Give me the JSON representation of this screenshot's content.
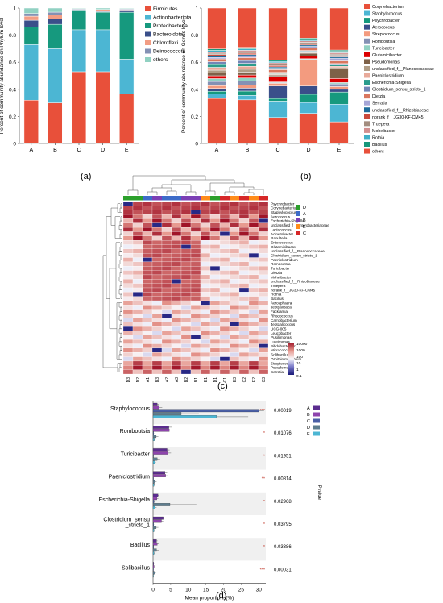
{
  "panel_labels": {
    "a": "(a)",
    "b": "(b)",
    "c": "(c)",
    "d": "(d)"
  },
  "colors": {
    "phylum": [
      "#e8503a",
      "#4cb6d3",
      "#16997e",
      "#3a4f8a",
      "#f29d84",
      "#8491b4",
      "#91d1c2"
    ],
    "genus": [
      "#e8503a",
      "#4cb6d3",
      "#16997e",
      "#3a4f8a",
      "#f39b7f",
      "#8491b4",
      "#91d1c2",
      "#dc0000",
      "#7e6148",
      "#b09c85",
      "#e8aa9a",
      "#2b9c8c",
      "#7385b6",
      "#d9775f",
      "#a6a6d6",
      "#1d6b9a",
      "#c94a3c",
      "#a38d7f",
      "#d18f8f",
      "#3fb0c8",
      "#17977a"
    ],
    "groups": {
      "A": "#3d6cc9",
      "B": "#7b3fb5",
      "C": "#d62728",
      "D": "#2ca02c",
      "E": "#ff8c1a"
    },
    "lefse": [
      "#5b2d8f",
      "#8e44ad",
      "#4a5fa6",
      "#5e7d8f",
      "#4cb6d3"
    ]
  },
  "chart_data": [
    {
      "type": "bar",
      "stacked": true,
      "categories": [
        "A",
        "B",
        "C",
        "D",
        "E"
      ],
      "ylabel": "Percent of community abundance on Phylum level",
      "ylim": [
        0,
        1
      ],
      "yticks": [
        "0",
        "0.2",
        "0.4",
        "0.6",
        "0.8",
        "1"
      ],
      "legend_position": "right",
      "series": [
        {
          "name": "Firmicutes",
          "values": [
            0.32,
            0.3,
            0.53,
            0.53,
            0.36
          ]
        },
        {
          "name": "Actinobacteriota",
          "values": [
            0.41,
            0.4,
            0.31,
            0.31,
            0.25
          ]
        },
        {
          "name": "Proteobacteria",
          "values": [
            0.13,
            0.18,
            0.14,
            0.13,
            0.34
          ]
        },
        {
          "name": "Bacteroidota",
          "values": [
            0.05,
            0.04,
            0.005,
            0.005,
            0.01
          ]
        },
        {
          "name": "Chloroflexi",
          "values": [
            0.03,
            0.03,
            0.005,
            0.01,
            0.01
          ]
        },
        {
          "name": "Deinococcota",
          "values": [
            0.02,
            0.02,
            0.005,
            0.005,
            0.005
          ]
        },
        {
          "name": "others",
          "values": [
            0.04,
            0.03,
            0.005,
            0.01,
            0.005
          ]
        }
      ]
    },
    {
      "type": "bar",
      "stacked": true,
      "categories": [
        "A",
        "B",
        "C",
        "D",
        "E"
      ],
      "ylabel": "Percent of community abundance on Genus level",
      "ylim": [
        0,
        1
      ],
      "yticks": [
        "0",
        "0.2",
        "0.4",
        "0.6",
        "0.8",
        "1"
      ],
      "legend_position": "right",
      "series": [
        {
          "name": "Corynebacterium",
          "values": [
            0.32,
            0.3,
            0.19,
            0.22,
            0.16
          ]
        },
        {
          "name": "Staphylococcus",
          "values": [
            0.03,
            0.03,
            0.12,
            0.08,
            0.13
          ]
        },
        {
          "name": "Psychrobacter",
          "values": [
            0.02,
            0.03,
            0.02,
            0.06,
            0.09
          ]
        },
        {
          "name": "Aerococcus",
          "values": [
            0.02,
            0.02,
            0.09,
            0.06,
            0.02
          ]
        },
        {
          "name": "Streptococcus",
          "values": [
            0.02,
            0.02,
            0.02,
            0.19,
            0.02
          ]
        },
        {
          "name": "Romboutsia",
          "values": [
            0.03,
            0.03,
            0.005,
            0.005,
            0.02
          ]
        },
        {
          "name": "Turicibacter",
          "values": [
            0.02,
            0.02,
            0.005,
            0.005,
            0.01
          ]
        },
        {
          "name": "Glutamicibacter",
          "values": [
            0.02,
            0.02,
            0.04,
            0.02,
            0.03
          ]
        },
        {
          "name": "Pseudomonas",
          "values": [
            0.02,
            0.02,
            0.01,
            0.02,
            0.07
          ]
        },
        {
          "name": "unclassified_f__Planococcaceae",
          "values": [
            0.02,
            0.02,
            0.005,
            0.005,
            0.01
          ]
        },
        {
          "name": "Paeniclostridium",
          "values": [
            0.02,
            0.02,
            0.005,
            0.005,
            0.01
          ]
        },
        {
          "name": "Escherichia-Shigella",
          "values": [
            0.02,
            0.02,
            0.005,
            0.005,
            0.01
          ]
        },
        {
          "name": "Clostridium_sensu_stricto_1",
          "values": [
            0.02,
            0.02,
            0.005,
            0.005,
            0.01
          ]
        },
        {
          "name": "Dietzia",
          "values": [
            0.02,
            0.02,
            0.02,
            0.02,
            0.02
          ]
        },
        {
          "name": "Serratia",
          "values": [
            0.01,
            0.01,
            0.01,
            0.01,
            0.02
          ]
        },
        {
          "name": "unclassified_f__Rhizobiaceae",
          "values": [
            0.01,
            0.01,
            0.01,
            0.01,
            0.01
          ]
        },
        {
          "name": "norank_f__JG30-KF-CM45",
          "values": [
            0.01,
            0.01,
            0.01,
            0.01,
            0.01
          ]
        },
        {
          "name": "Truepera",
          "values": [
            0.01,
            0.01,
            0.01,
            0.01,
            0.01
          ]
        },
        {
          "name": "Moheibacter",
          "values": [
            0.01,
            0.01,
            0.01,
            0.01,
            0.01
          ]
        },
        {
          "name": "Rothia",
          "values": [
            0.01,
            0.01,
            0.01,
            0.01,
            0.01
          ]
        },
        {
          "name": "Bacillus",
          "values": [
            0.01,
            0.01,
            0.01,
            0.01,
            0.01
          ]
        },
        {
          "name": "others",
          "values": [
            0.29,
            0.27,
            0.38,
            0.22,
            0.31
          ]
        }
      ]
    },
    {
      "type": "heatmap",
      "columns": [
        "D3",
        "D2",
        "A1",
        "B3",
        "A2",
        "A3",
        "B2",
        "B1",
        "E1",
        "D1",
        "C1",
        "E3",
        "C2",
        "E2",
        "C3"
      ],
      "column_groups": [
        "D",
        "D",
        "A",
        "B",
        "A",
        "A",
        "B",
        "B",
        "E",
        "D",
        "C",
        "E",
        "C",
        "E",
        "C"
      ],
      "rows": [
        "Psychrobacter",
        "Corynebacterium",
        "Staphylococcus",
        "Aerococcus",
        "Escherichia-Shigella",
        "unclassified_f__Enterobacteriaceae",
        "Lactococcus",
        "Acinetobacter",
        "Raoultella",
        "Enterococcus",
        "Glutamicibacter",
        "unclassified_f__Planococcaceae",
        "Clostridium_sensu_stricto_1",
        "Paeniclostridium",
        "Romboutsia",
        "Turicibacter",
        "Dietzia",
        "Moheibacter",
        "unclassified_f__Rhizobiaceae",
        "Truepera",
        "norank_f__JG30-KF-CM45",
        "Rothia",
        "Bacillus",
        "Aerosphaera",
        "Jeotgalibaca",
        "Facklamia",
        "Rhodococcus",
        "Carnobacterium",
        "Jeotgalicoccus",
        "UCG-005",
        "Leucobacter",
        "Pusillimonas",
        "Luteimonas",
        "Bifidobacterium",
        "Micrococcus",
        "Solibacillus",
        "Ornithinimicrobium",
        "Streptococcus",
        "Pseudomonas",
        "Serratia"
      ],
      "legend_group_order": [
        "D",
        "A",
        "B",
        "E",
        "C"
      ],
      "colorbar_ticks": [
        "10000",
        "1000",
        "100",
        "10",
        "1",
        "0.1"
      ],
      "log_scale": true
    },
    {
      "type": "bar",
      "orientation": "horizontal",
      "categories": [
        "Staphylococcus",
        "Romboutsia",
        "Turicibacter",
        "Paeniclostridium",
        "Escherichia-Shigella",
        "Clostridium_sensu_stricto_1",
        "Bacillus",
        "Solibacillus"
      ],
      "category_labels": [
        "Staphylococcus",
        "Romboutsia",
        "Turicibacter",
        "Paeniclostridium",
        "Escherichia-Shigella",
        "Clostridium_sensu\n_stricto_1",
        "Bacillus",
        "Solibacillus"
      ],
      "xlabel": "Mean proportions(%)",
      "xlim": [
        0,
        32
      ],
      "xticks": [
        "0",
        "5",
        "10",
        "15",
        "20",
        "25",
        "30"
      ],
      "right_axis_label": "Pvalue",
      "pvalues": [
        "0.00019",
        "0.01076",
        "0.01951",
        "0.00814",
        "0.02968",
        "0.03795",
        "0.03386",
        "0.00031"
      ],
      "stars": [
        "***",
        "*",
        "*",
        "**",
        "*",
        "*",
        "*",
        "***"
      ],
      "legend_position": "top-right",
      "series": [
        {
          "name": "A",
          "values": [
            1.2,
            4.5,
            4.0,
            3.4,
            1.4,
            2.9,
            1.0,
            0.2
          ]
        },
        {
          "name": "B",
          "values": [
            1.8,
            4.6,
            4.3,
            3.6,
            1.1,
            2.4,
            1.2,
            0.3
          ]
        },
        {
          "name": "C",
          "values": [
            30.0,
            0.2,
            0.1,
            0.1,
            0.3,
            0.2,
            0.2,
            0.1
          ]
        },
        {
          "name": "D",
          "values": [
            8.0,
            0.9,
            1.2,
            0.6,
            4.8,
            0.9,
            1.0,
            0.5
          ]
        },
        {
          "name": "E",
          "values": [
            18.0,
            0.4,
            0.5,
            0.3,
            0.6,
            0.3,
            0.3,
            0.1
          ]
        }
      ],
      "errors": [
        [
          0.6,
          0.8,
          0.7,
          0.6,
          0.4,
          0.5,
          0.3,
          0.1
        ],
        [
          0.8,
          0.9,
          0.8,
          0.7,
          0.4,
          0.5,
          0.4,
          0.1
        ],
        [
          1.5,
          0.1,
          0.1,
          0.1,
          0.2,
          0.1,
          0.1,
          0.05
        ],
        [
          5.0,
          0.6,
          0.8,
          0.4,
          7.5,
          0.6,
          0.6,
          0.3
        ],
        [
          9.0,
          0.3,
          0.3,
          0.2,
          0.4,
          0.2,
          0.2,
          0.05
        ]
      ]
    }
  ]
}
